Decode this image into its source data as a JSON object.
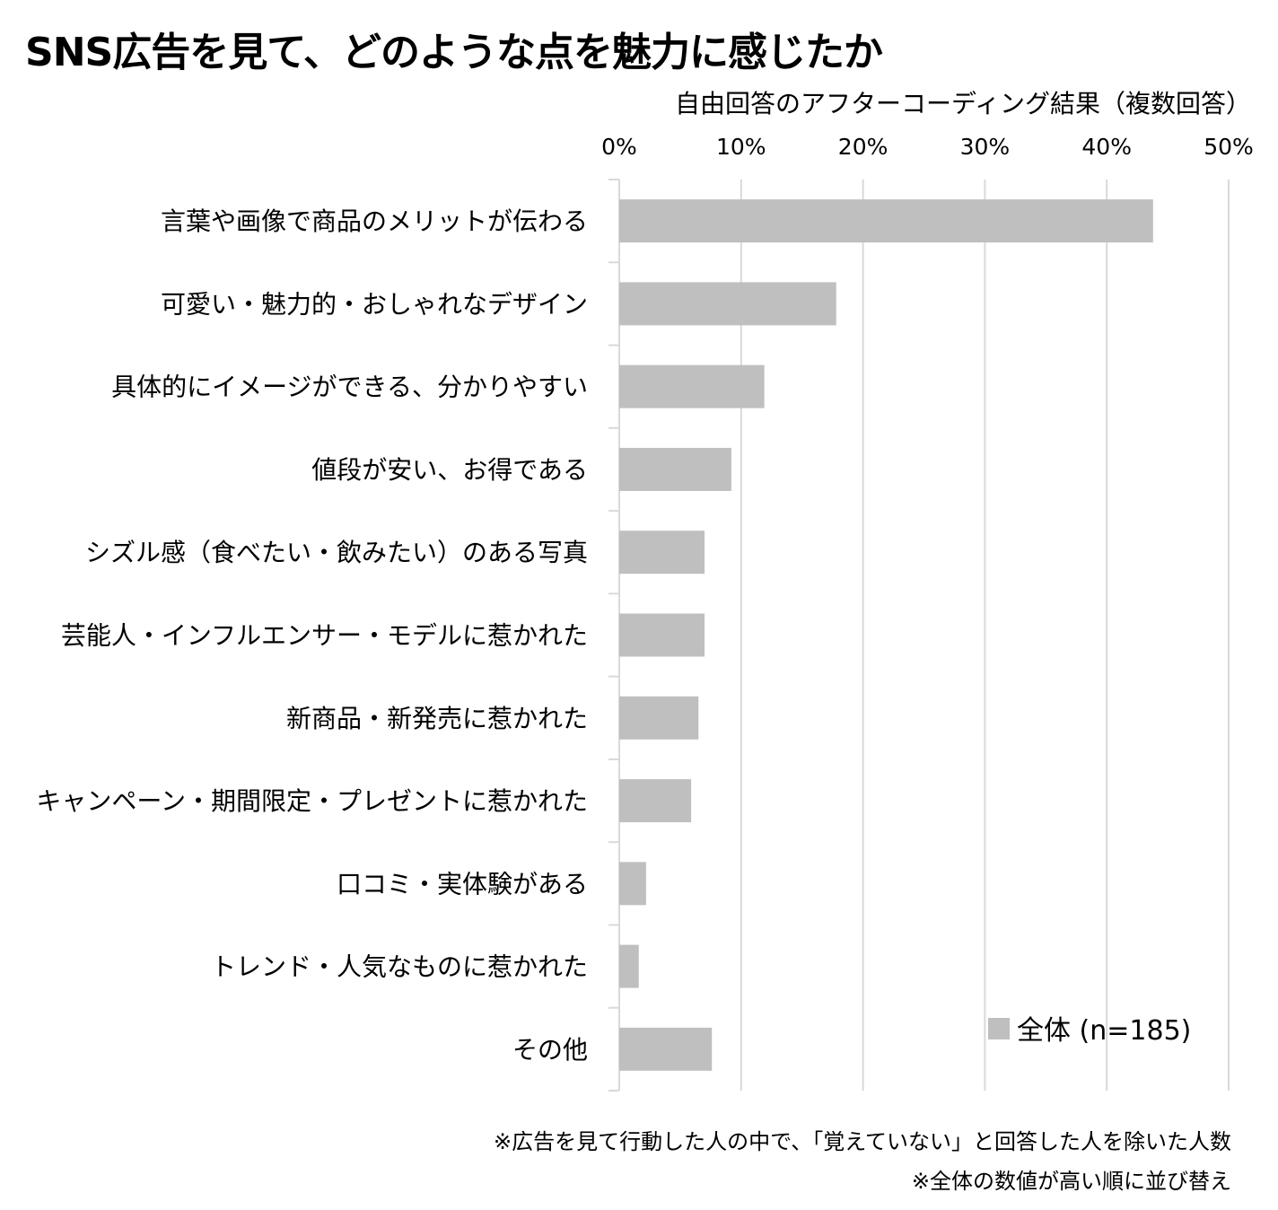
{
  "chart_data": {
    "type": "bar",
    "orientation": "horizontal",
    "title": "SNS広告を見て、どのような点を魅力に感じたか",
    "subtitle": "自由回答のアフターコーディング結果（複数回答）",
    "categories": [
      "言葉や画像で商品のメリットが伝わる",
      "可愛い・魅力的・おしゃれなデザイン",
      "具体的にイメージができる、分かりやすい",
      "値段が安い、お得である",
      "シズル感（食べたい・飲みたい）のある写真",
      "芸能人・インフルエンサー・モデルに惹かれた",
      "新商品・新発売に惹かれた",
      "キャンペーン・期間限定・プレゼントに惹かれた",
      "口コミ・実体験がある",
      "トレンド・人気なものに惹かれた",
      "その他"
    ],
    "series": [
      {
        "name": "全体 (n=185)",
        "values": [
          43.8,
          17.8,
          11.9,
          9.2,
          7.0,
          7.0,
          6.5,
          5.9,
          2.2,
          1.6,
          7.6
        ],
        "color": "#bfbfbf"
      }
    ],
    "xlim": [
      0,
      50
    ],
    "xticks": [
      "0%",
      "10%",
      "20%",
      "30%",
      "40%",
      "50%"
    ],
    "grid": true,
    "legend_position": "bottom-right",
    "footnotes": [
      "※広告を見て行動した人の中で、「覚えていない」と回答した人を除いた人数",
      "※全体の数値が高い順に並び替え"
    ]
  }
}
